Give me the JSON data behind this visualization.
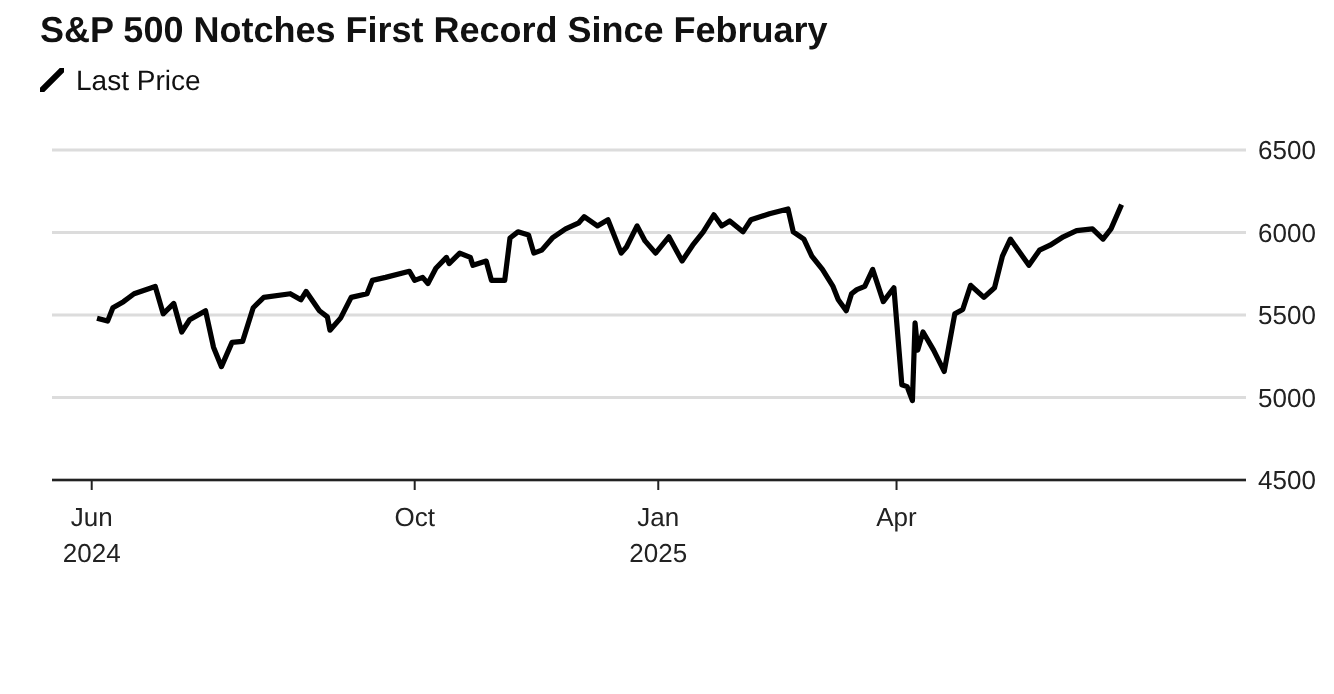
{
  "chart_data": {
    "type": "line",
    "title": "S&P 500 Notches First Record Since February",
    "x": [
      "2024-06-03",
      "2024-06-07",
      "2024-06-09",
      "2024-06-13",
      "2024-06-17",
      "2024-06-25",
      "2024-06-28",
      "2024-07-02",
      "2024-07-05",
      "2024-07-08",
      "2024-07-14",
      "2024-07-17",
      "2024-07-20",
      "2024-07-24",
      "2024-07-28",
      "2024-08-01",
      "2024-08-05",
      "2024-08-15",
      "2024-08-19",
      "2024-08-21",
      "2024-08-26",
      "2024-08-29",
      "2024-08-30",
      "2024-09-03",
      "2024-09-07",
      "2024-09-13",
      "2024-09-15",
      "2024-09-20",
      "2024-09-29",
      "2024-10-01",
      "2024-10-04",
      "2024-10-06",
      "2024-10-09",
      "2024-10-13",
      "2024-10-14",
      "2024-10-18",
      "2024-10-22",
      "2024-10-23",
      "2024-10-28",
      "2024-10-30",
      "2024-11-04",
      "2024-11-06",
      "2024-11-09",
      "2024-11-13",
      "2024-11-15",
      "2024-11-18",
      "2024-11-22",
      "2024-11-27",
      "2024-12-02",
      "2024-12-04",
      "2024-12-09",
      "2024-12-13",
      "2024-12-18",
      "2024-12-20",
      "2024-12-24",
      "2024-12-27",
      "2024-12-31",
      "2025-01-05",
      "2025-01-10",
      "2025-01-14",
      "2025-01-18",
      "2025-01-22",
      "2025-01-25",
      "2025-01-28",
      "2025-02-02",
      "2025-02-05",
      "2025-02-12",
      "2025-02-19",
      "2025-02-21",
      "2025-02-25",
      "2025-02-28",
      "2025-03-04",
      "2025-03-08",
      "2025-03-10",
      "2025-03-13",
      "2025-03-15",
      "2025-03-17",
      "2025-03-20",
      "2025-03-23",
      "2025-03-27",
      "2025-03-31",
      "2025-04-03",
      "2025-04-05",
      "2025-04-07",
      "2025-04-08",
      "2025-04-09",
      "2025-04-11",
      "2025-04-15",
      "2025-04-19",
      "2025-04-23",
      "2025-04-26",
      "2025-04-29",
      "2025-05-04",
      "2025-05-08",
      "2025-05-11",
      "2025-05-14",
      "2025-05-21",
      "2025-05-25",
      "2025-05-29",
      "2025-06-03",
      "2025-06-08",
      "2025-06-14",
      "2025-06-18",
      "2025-06-21",
      "2025-06-25"
    ],
    "series": [
      {
        "name": "Last Price",
        "color": "#000000",
        "values": [
          5481,
          5463,
          5544,
          5581,
          5629,
          5673,
          5507,
          5570,
          5397,
          5471,
          5526,
          5305,
          5187,
          5334,
          5340,
          5544,
          5607,
          5629,
          5592,
          5643,
          5526,
          5489,
          5408,
          5481,
          5607,
          5629,
          5710,
          5728,
          5765,
          5710,
          5728,
          5691,
          5783,
          5849,
          5812,
          5875,
          5849,
          5801,
          5827,
          5710,
          5710,
          5967,
          6004,
          5985,
          5875,
          5893,
          5967,
          6022,
          6059,
          6096,
          6040,
          6077,
          5875,
          5912,
          6040,
          5949,
          5875,
          5974,
          5827,
          5923,
          6004,
          6107,
          6040,
          6070,
          6004,
          6077,
          6114,
          6143,
          6004,
          5960,
          5857,
          5776,
          5673,
          5592,
          5526,
          5629,
          5654,
          5673,
          5776,
          5581,
          5665,
          5077,
          5066,
          4981,
          5452,
          5287,
          5397,
          5287,
          5158,
          5507,
          5533,
          5680,
          5607,
          5665,
          5857,
          5960,
          5801,
          5893,
          5923,
          5974,
          6011,
          6022,
          5960,
          6022,
          6169
        ]
      }
    ],
    "xlim": [
      "2024-05-17",
      "2025-08-11"
    ],
    "xticks": [
      {
        "value": "2024-06-01",
        "label": "Jun\n2024"
      },
      {
        "value": "2024-10-01",
        "label": "Oct"
      },
      {
        "value": "2025-01-01",
        "label": "Jan\n2025"
      },
      {
        "value": "2025-04-01",
        "label": "Apr"
      }
    ],
    "ylim": [
      4500,
      6500
    ],
    "yticks": [
      4500,
      5000,
      5500,
      6000,
      6500
    ],
    "grid": "y",
    "legend": "top left",
    "line_style": "solid"
  }
}
